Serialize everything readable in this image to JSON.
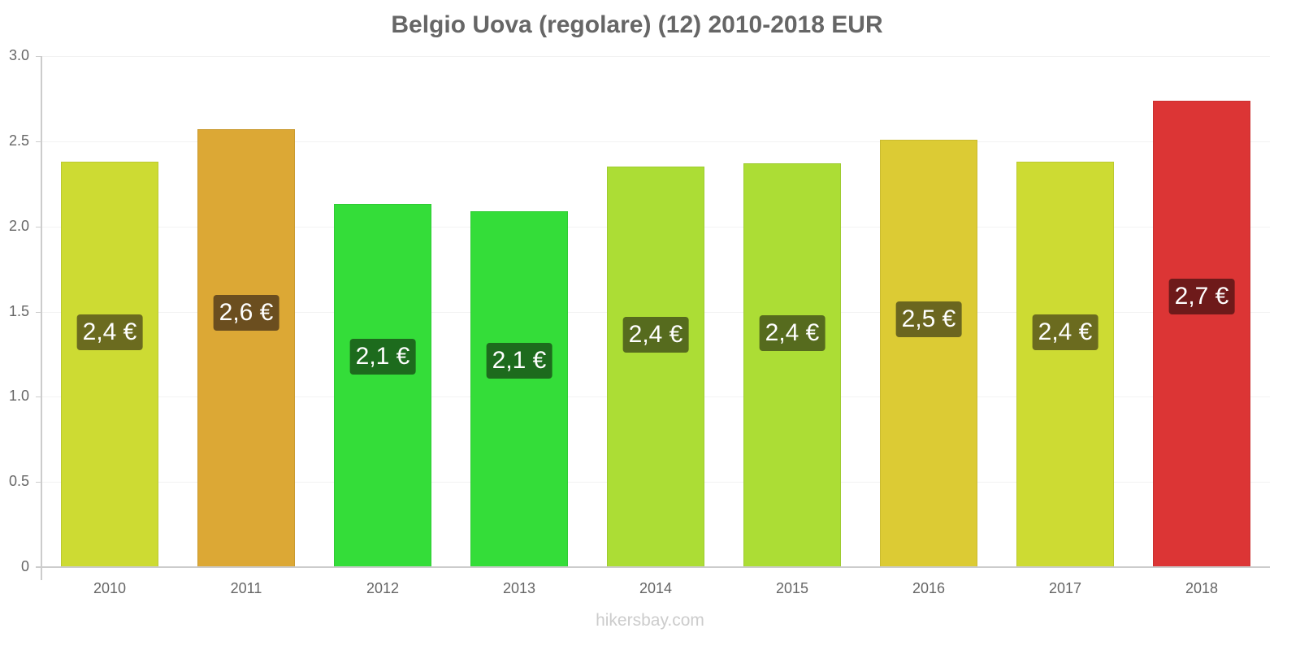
{
  "chart_data": {
    "type": "bar",
    "title": "Belgio Uova (regolare) (12) 2010-2018 EUR",
    "xlabel": "",
    "ylabel": "",
    "ylim": [
      0,
      3.0
    ],
    "yticks": [
      "0",
      "0.5",
      "1.0",
      "1.5",
      "2.0",
      "2.5",
      "3.0"
    ],
    "grid": true,
    "legend": "none",
    "categories": [
      "2010",
      "2011",
      "2012",
      "2013",
      "2014",
      "2015",
      "2016",
      "2017",
      "2018"
    ],
    "values": [
      2.38,
      2.57,
      2.13,
      2.09,
      2.35,
      2.37,
      2.51,
      2.38,
      2.74
    ],
    "data_labels": [
      "2,4 €",
      "2,6 €",
      "2,1 €",
      "2,1 €",
      "2,4 €",
      "2,4 €",
      "2,5 €",
      "2,4 €",
      "2,7 €"
    ],
    "bar_colors": [
      "#cddb33",
      "#dca835",
      "#34dd39",
      "#34dd39",
      "#acdd35",
      "#acdd35",
      "#dccb34",
      "#cddb33",
      "#dc3535"
    ],
    "label_colors": [
      "#6b6b1f",
      "#6b4e1f",
      "#1d6b1d",
      "#1d6b1d",
      "#566b1e",
      "#566b1e",
      "#6b661f",
      "#6b6b1f",
      "#6e1a1a"
    ]
  },
  "footer": "hikersbay.com"
}
